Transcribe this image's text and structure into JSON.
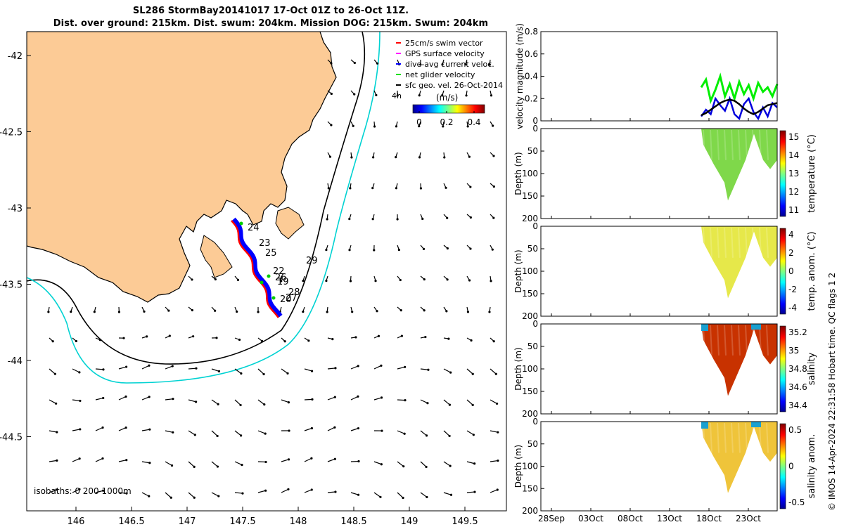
{
  "header": {
    "title_line1": "SL286 StormBay20141017 17-Oct 01Z to 26-Oct 11Z.",
    "title_line2": "Dist. over ground: 215km. Dist. swum: 204km. Mission DOG: 215km. Swum: 204km"
  },
  "map": {
    "x_ticks": [
      "146",
      "146.5",
      "147",
      "147.5",
      "148",
      "148.5",
      "149",
      "149.5"
    ],
    "y_ticks": [
      "-42",
      "-42.5",
      "-43",
      "-43.5",
      "-44",
      "-44.5"
    ],
    "isobath_label": "isobaths: 0   200  1000m",
    "legend": [
      {
        "label": "25cm/s swim vector",
        "color": "#ff0000"
      },
      {
        "label": "GPS surface velocity",
        "color": "#ff00ff"
      },
      {
        "label": "dive-avg current veloc.",
        "color": "#0000ff"
      },
      {
        "label": "net glider velocity",
        "color": "#00e000"
      },
      {
        "label": "sfc geo. vel. 26-Oct-2014",
        "color": "#000000"
      }
    ],
    "legend_extra": "4h",
    "colorbar_title": "(m/s)",
    "colorbar_ticks": [
      "0",
      "0.2",
      "0.4"
    ],
    "day_labels": [
      "24",
      "23",
      "25",
      "22",
      "26",
      "19",
      "28",
      "20",
      "27",
      "29"
    ],
    "colors": {
      "land": "#fccb96",
      "isobath_200": "#000000",
      "isobath_1000": "#00d2d2",
      "track_red": "#ff0000",
      "track_blue": "#0000ff"
    }
  },
  "chart_data": [
    {
      "type": "line",
      "ylabel": "velocity magnitude (m/s)",
      "ylim": [
        0,
        0.8
      ],
      "yticks": [
        "0",
        "0.2",
        "0.4",
        "0.6",
        "0.8"
      ],
      "series": [
        {
          "color": "#00ee00"
        },
        {
          "color": "#0000dd"
        },
        {
          "color": "#000000"
        }
      ]
    },
    {
      "type": "heatmap",
      "ylabel": "Depth (m)",
      "yticks": [
        "0",
        "50",
        "100",
        "150",
        "200"
      ],
      "colorbar_label": "temperature (°C)",
      "colorbar_ticks": [
        "15",
        "14",
        "13",
        "12",
        "11"
      ]
    },
    {
      "type": "heatmap",
      "ylabel": "Depth (m)",
      "yticks": [
        "0",
        "50",
        "100",
        "150",
        "200"
      ],
      "colorbar_label": "temp. anom. (°C)",
      "colorbar_ticks": [
        "4",
        "2",
        "0",
        "-2",
        "-4"
      ]
    },
    {
      "type": "heatmap",
      "ylabel": "Depth (m)",
      "yticks": [
        "0",
        "50",
        "100",
        "150",
        "200"
      ],
      "colorbar_label": "salinity",
      "colorbar_ticks": [
        "35.2",
        "35",
        "34.8",
        "34.6",
        "34.4"
      ]
    },
    {
      "type": "heatmap",
      "ylabel": "Depth (m)",
      "yticks": [
        "0",
        "50",
        "100",
        "150",
        "200"
      ],
      "colorbar_label": "salinity anom.",
      "colorbar_ticks": [
        "0.5",
        "0",
        "-0.5"
      ]
    }
  ],
  "time_axis": [
    "28Sep",
    "03Oct",
    "08Oct",
    "13Oct",
    "18Oct",
    "23Oct"
  ],
  "footer": "© IMOS 14-Apr-2024 22:31:58 Hobart time. QC flags 1  2"
}
